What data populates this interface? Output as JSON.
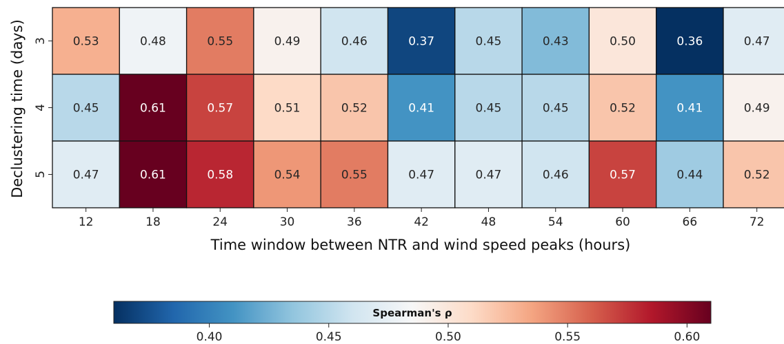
{
  "chart_data": {
    "type": "heatmap",
    "x_categories": [
      "12",
      "18",
      "24",
      "30",
      "36",
      "42",
      "48",
      "54",
      "60",
      "66",
      "72"
    ],
    "y_categories": [
      "3",
      "4",
      "5"
    ],
    "values": [
      [
        0.53,
        0.48,
        0.55,
        0.49,
        0.46,
        0.37,
        0.45,
        0.43,
        0.5,
        0.36,
        0.47
      ],
      [
        0.45,
        0.61,
        0.57,
        0.51,
        0.52,
        0.41,
        0.45,
        0.45,
        0.52,
        0.41,
        0.49
      ],
      [
        0.47,
        0.61,
        0.58,
        0.54,
        0.55,
        0.47,
        0.47,
        0.46,
        0.57,
        0.44,
        0.52
      ]
    ],
    "xlabel": "Time window between NTR and wind speed peaks (hours)",
    "ylabel": "Declustering time (days)",
    "colorbar": {
      "label": "Spearman's ρ",
      "range": [
        0.36,
        0.61
      ],
      "ticks": [
        "0.40",
        "0.45",
        "0.50",
        "0.55",
        "0.60"
      ],
      "tick_values": [
        0.4,
        0.45,
        0.5,
        0.55,
        0.6
      ],
      "colormap": "RdBu_r",
      "orientation": "horizontal",
      "placement": "bottom"
    }
  }
}
